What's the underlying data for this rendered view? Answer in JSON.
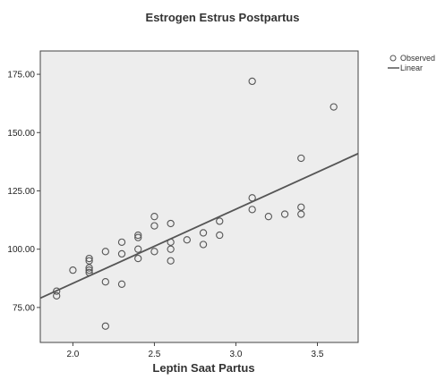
{
  "chart_data": {
    "type": "scatter",
    "title": "Estrogen Estrus Postpartus",
    "xlabel": "Leptin Saat Partus",
    "ylabel": "",
    "xlim": [
      1.8,
      3.75
    ],
    "ylim": [
      60,
      185
    ],
    "x_ticks": [
      2.0,
      2.5,
      3.0,
      3.5
    ],
    "x_tick_labels": [
      "2.0",
      "2.5",
      "3.0",
      "3.5"
    ],
    "y_ticks": [
      75,
      100,
      125,
      150,
      175
    ],
    "y_tick_labels": [
      "75.00",
      "100.00",
      "125.00",
      "150.00",
      "175.00"
    ],
    "grid": false,
    "legend_position": "top-right",
    "series": [
      {
        "name": "Observed",
        "type": "scatter",
        "marker": "open-circle",
        "x": [
          1.9,
          1.9,
          2.0,
          2.1,
          2.1,
          2.1,
          2.1,
          2.1,
          2.2,
          2.2,
          2.2,
          2.3,
          2.3,
          2.3,
          2.4,
          2.4,
          2.4,
          2.4,
          2.5,
          2.5,
          2.5,
          2.6,
          2.6,
          2.6,
          2.6,
          2.7,
          2.8,
          2.8,
          2.9,
          2.9,
          3.1,
          3.1,
          3.1,
          3.2,
          3.3,
          3.4,
          3.4,
          3.4,
          3.6
        ],
        "y": [
          82,
          80,
          91,
          96,
          95,
          92,
          91,
          90,
          99,
          86,
          67,
          103,
          98,
          85,
          106,
          105,
          100,
          96,
          114,
          110,
          99,
          111,
          103,
          100,
          95,
          104,
          107,
          102,
          112,
          106,
          172,
          122,
          117,
          114,
          115,
          139,
          118,
          115,
          161
        ]
      },
      {
        "name": "Linear",
        "type": "line",
        "x": [
          1.8,
          3.75
        ],
        "y": [
          79,
          141
        ]
      }
    ]
  },
  "colors": {
    "plot_background": "#ededed",
    "axis": "#444444",
    "marker": "#555555",
    "fit_line": "#555555"
  }
}
